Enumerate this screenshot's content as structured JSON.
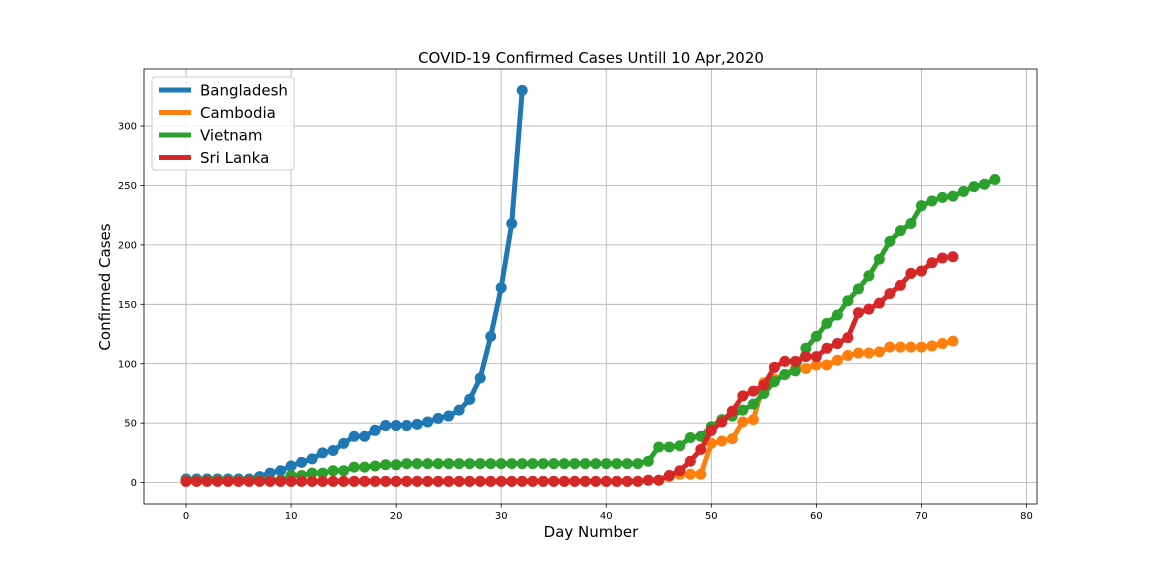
{
  "chart_data": {
    "type": "line",
    "title": "COVID-19 Confirmed Cases Untill 10 Apr,2020",
    "xlabel": "Day Number",
    "ylabel": "Confirmed Cases",
    "xlim": [
      -4,
      81
    ],
    "ylim": [
      -18,
      348
    ],
    "xticks": [
      0,
      10,
      20,
      30,
      40,
      50,
      60,
      70,
      80
    ],
    "yticks": [
      0,
      50,
      100,
      150,
      200,
      250,
      300
    ],
    "grid": true,
    "legend_position": "top-left",
    "series": [
      {
        "name": "Bangladesh",
        "color": "#1f77b4",
        "values": [
          3,
          3,
          3,
          3,
          3,
          3,
          3,
          5,
          8,
          10,
          14,
          17,
          20,
          25,
          27,
          33,
          39,
          39,
          44,
          48,
          48,
          48,
          49,
          51,
          54,
          56,
          61,
          70,
          88,
          123,
          164,
          218,
          330
        ]
      },
      {
        "name": "Cambodia",
        "color": "#ff7f0e",
        "values": [
          1,
          1,
          1,
          1,
          1,
          1,
          1,
          1,
          1,
          1,
          1,
          1,
          1,
          1,
          1,
          1,
          1,
          1,
          1,
          1,
          1,
          1,
          1,
          1,
          1,
          1,
          1,
          1,
          1,
          1,
          1,
          1,
          1,
          1,
          1,
          1,
          1,
          1,
          1,
          1,
          1,
          1,
          1,
          1,
          2,
          2,
          5,
          7,
          7,
          7,
          33,
          35,
          37,
          51,
          53,
          84,
          87,
          91,
          96,
          96,
          99,
          99,
          103,
          107,
          109,
          109,
          110,
          114,
          114,
          114,
          114,
          115,
          117,
          119
        ]
      },
      {
        "name": "Vietnam",
        "color": "#2ca02c",
        "values": [
          2,
          2,
          2,
          2,
          2,
          2,
          2,
          2,
          2,
          2,
          6,
          6,
          8,
          8,
          10,
          10,
          13,
          13,
          14,
          15,
          15,
          16,
          16,
          16,
          16,
          16,
          16,
          16,
          16,
          16,
          16,
          16,
          16,
          16,
          16,
          16,
          16,
          16,
          16,
          16,
          16,
          16,
          16,
          16,
          18,
          30,
          30,
          31,
          38,
          39,
          47,
          53,
          56,
          61,
          66,
          75,
          85,
          91,
          94,
          113,
          123,
          134,
          141,
          153,
          163,
          174,
          188,
          203,
          212,
          218,
          233,
          237,
          240,
          241,
          245,
          249,
          251,
          255
        ]
      },
      {
        "name": "Sri Lanka",
        "color": "#d62728",
        "values": [
          1,
          1,
          1,
          1,
          1,
          1,
          1,
          1,
          1,
          1,
          1,
          1,
          1,
          1,
          1,
          1,
          1,
          1,
          1,
          1,
          1,
          1,
          1,
          1,
          1,
          1,
          1,
          1,
          1,
          1,
          1,
          1,
          1,
          1,
          1,
          1,
          1,
          1,
          1,
          1,
          1,
          1,
          1,
          1,
          2,
          2,
          6,
          10,
          18,
          28,
          44,
          51,
          60,
          73,
          77,
          82,
          97,
          102,
          102,
          106,
          106,
          113,
          117,
          122,
          143,
          146,
          151,
          159,
          166,
          176,
          178,
          185,
          189,
          190
        ]
      }
    ]
  }
}
